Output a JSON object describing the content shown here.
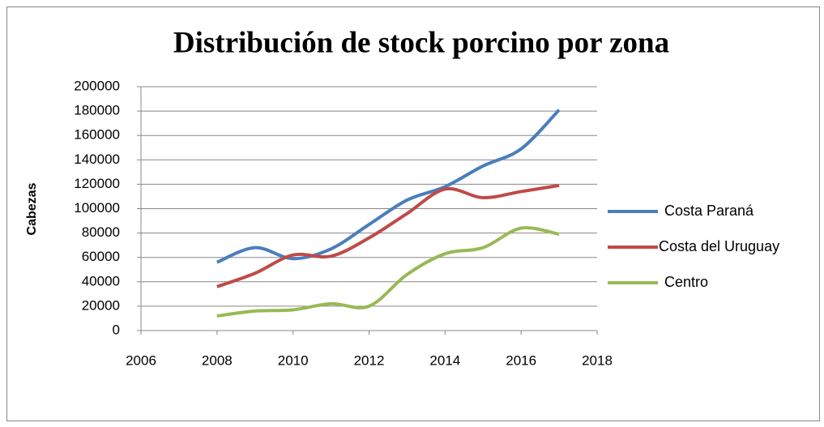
{
  "chart_data": {
    "type": "line",
    "title": "Distribución de stock porcino por zona",
    "y_label": "Cabezas",
    "x": [
      2008,
      2009,
      2010,
      2011,
      2012,
      2013,
      2014,
      2015,
      2016,
      2017
    ],
    "series": [
      {
        "name": "Costa Paraná",
        "color": "#4a7ebb",
        "values": [
          56000,
          68000,
          59000,
          67000,
          87000,
          107000,
          118000,
          135000,
          149000,
          181000
        ]
      },
      {
        "name": "Costa del Uruguay",
        "color": "#be4b48",
        "values": [
          36000,
          47000,
          62000,
          61000,
          76000,
          96000,
          116000,
          109000,
          114000,
          119000
        ]
      },
      {
        "name": "Centro",
        "color": "#98b954",
        "values": [
          12000,
          16000,
          17000,
          22000,
          20000,
          46000,
          63000,
          68000,
          84000,
          79000
        ]
      }
    ],
    "xlim": [
      2006,
      2018
    ],
    "xticks": [
      2006,
      2008,
      2010,
      2012,
      2014,
      2016,
      2018
    ],
    "ylim": [
      0,
      200000
    ],
    "yticks": [
      0,
      20000,
      40000,
      60000,
      80000,
      100000,
      120000,
      140000,
      160000,
      180000,
      200000
    ],
    "grid": true,
    "smooth": true,
    "legend": "right"
  }
}
